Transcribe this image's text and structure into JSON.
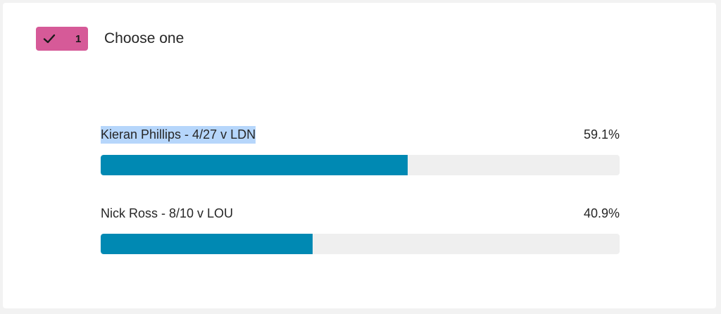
{
  "question": {
    "badge_count": "1",
    "badge_icon": "checkmark-icon",
    "badge_color": "#d65a98",
    "title": "Choose one"
  },
  "options": [
    {
      "label": "Kieran Phillips - 4/27 v LDN",
      "percent_text": "59.1%",
      "percent": 59.1,
      "highlighted": true
    },
    {
      "label": "Nick Ross - 8/10 v LOU",
      "percent_text": "40.9%",
      "percent": 40.9,
      "highlighted": false
    }
  ],
  "colors": {
    "bar_fill": "#0089b3",
    "bar_track": "#efefef",
    "text_highlight": "#b6d6fb"
  }
}
